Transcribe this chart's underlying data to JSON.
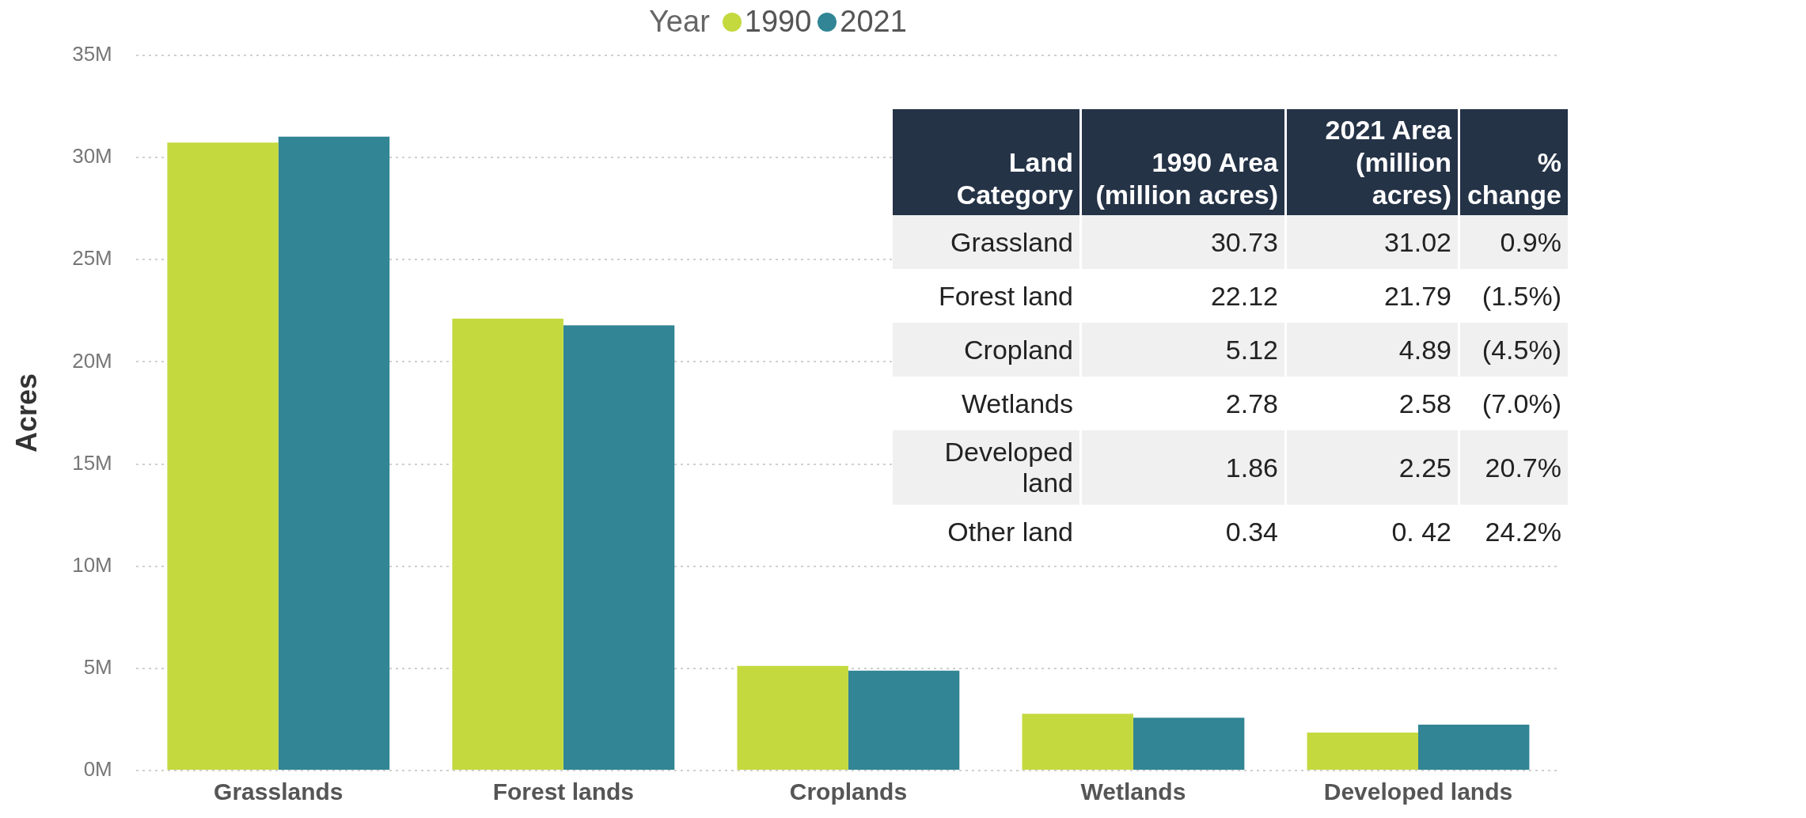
{
  "chart_data": [
    {
      "type": "bar",
      "ylabel": "Acres",
      "legend_title": "Year",
      "legend": "top",
      "grid": "y",
      "categories": [
        "Grasslands",
        "Forest lands",
        "Croplands",
        "Wetlands",
        "Developed lands"
      ],
      "series": [
        {
          "name": "1990",
          "color": "#c4d93e",
          "values": [
            30.73,
            22.12,
            5.12,
            2.78,
            1.86
          ]
        },
        {
          "name": "2021",
          "color": "#318594",
          "values": [
            31.02,
            21.79,
            4.89,
            2.58,
            2.25
          ]
        }
      ],
      "ylim": [
        0,
        35
      ],
      "yticks": [
        {
          "value": 0,
          "label": "0M"
        },
        {
          "value": 5,
          "label": "5M"
        },
        {
          "value": 10,
          "label": "10M"
        },
        {
          "value": 15,
          "label": "15M"
        },
        {
          "value": 20,
          "label": "20M"
        },
        {
          "value": 25,
          "label": "25M"
        },
        {
          "value": 30,
          "label": "30M"
        },
        {
          "value": 35,
          "label": "35M"
        }
      ]
    },
    {
      "type": "other",
      "categories": [
        "Land Category",
        "1990 Area (million acres)",
        "2021 Area (million acres)",
        "% change"
      ],
      "cell_labels": [
        [
          "Grassland",
          "30.73",
          "31.02",
          "0.9%"
        ],
        [
          "Forest land",
          "22.12",
          "21.79",
          "(1.5%)"
        ],
        [
          "Cropland",
          "5.12",
          "4.89",
          "(4.5%)"
        ],
        [
          "Wetlands",
          "2.78",
          "2.58",
          "(7.0%)"
        ],
        [
          "Developed land",
          "1.86",
          "2.25",
          "20.7%"
        ],
        [
          "Other land",
          "0.34",
          "0. 42",
          "24.2%"
        ]
      ]
    }
  ]
}
